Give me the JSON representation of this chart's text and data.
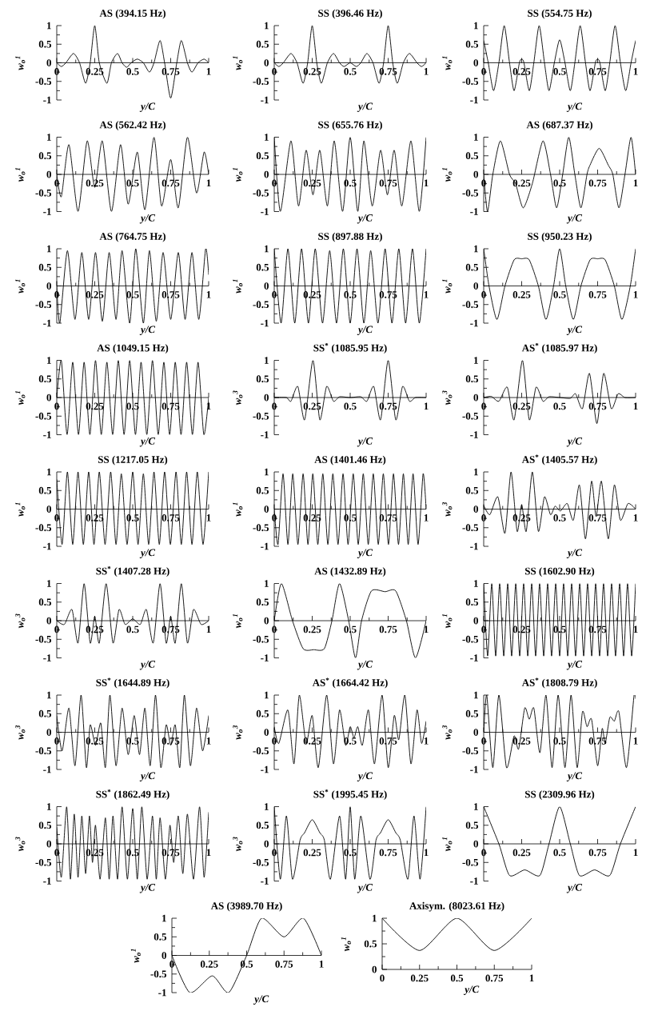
{
  "chart_data": [
    {
      "type": "line",
      "title": "AS (394.15 Hz)",
      "xlabel": "y/C",
      "ylabel": "w$_{o}$$^{1}$",
      "color": "#000000",
      "xlim": [
        0,
        1
      ],
      "ylim": [
        -1,
        1
      ],
      "xticks": [
        0,
        0.25,
        0.5,
        0.75,
        1
      ],
      "yticks": [
        -1,
        -0.5,
        0,
        0.5,
        1
      ],
      "x": [
        0,
        0.03,
        0.06,
        0.11,
        0.15,
        0.19,
        0.22,
        0.25,
        0.28,
        0.33,
        0.36,
        0.4,
        0.43,
        0.46,
        0.49,
        0.53,
        0.57,
        0.61,
        0.64,
        0.68,
        0.71,
        0.75,
        0.79,
        0.82,
        0.86,
        0.89,
        0.93,
        0.97,
        1
      ],
      "values": [
        0,
        -0.1,
        0,
        0.25,
        0,
        -0.55,
        0,
        1,
        0,
        -0.55,
        0,
        0.25,
        0,
        -0.12,
        0,
        0.1,
        0,
        -0.25,
        0,
        0.6,
        0,
        -0.95,
        0,
        0.6,
        0,
        -0.25,
        0,
        0.1,
        0
      ]
    },
    {
      "type": "line",
      "title": "SS (396.46 Hz)",
      "xlabel": "y/C",
      "ylabel": "w$_{o}$$^{1}$",
      "color": "#000000",
      "xlim": [
        0,
        1
      ],
      "ylim": [
        -1,
        1
      ],
      "xticks": [
        0,
        0.25,
        0.5,
        0.75,
        1
      ],
      "yticks": [
        -1,
        -0.5,
        0,
        0.5,
        1
      ],
      "x": [
        0,
        0.03,
        0.06,
        0.11,
        0.15,
        0.19,
        0.22,
        0.25,
        0.28,
        0.31,
        0.35,
        0.39,
        0.43,
        0.46,
        0.5,
        0.54,
        0.57,
        0.61,
        0.65,
        0.69,
        0.72,
        0.75,
        0.78,
        0.81,
        0.85,
        0.89,
        0.94,
        0.97,
        1
      ],
      "values": [
        0,
        -0.1,
        0,
        0.25,
        0,
        -0.55,
        0,
        1,
        0,
        -0.55,
        0,
        0.25,
        0,
        -0.1,
        0,
        -0.1,
        0,
        0.25,
        0,
        -0.55,
        0,
        1,
        0,
        -0.55,
        0,
        0.25,
        0,
        -0.1,
        0
      ]
    },
    {
      "type": "line",
      "title": "SS (554.75 Hz)",
      "xlabel": "y/C",
      "ylabel": "w$_{o}$$^{1}$",
      "color": "#000000",
      "xlim": [
        0,
        1
      ],
      "ylim": [
        -1,
        1
      ],
      "xticks": [
        0,
        0.25,
        0.5,
        0.75,
        1
      ],
      "yticks": [
        -1,
        -0.5,
        0,
        0.5,
        1
      ],
      "x": [
        0,
        0.03,
        0.065,
        0.1,
        0.135,
        0.17,
        0.2,
        0.235,
        0.25,
        0.265,
        0.3,
        0.33,
        0.365,
        0.4,
        0.43,
        0.465,
        0.5,
        0.535,
        0.57,
        0.6,
        0.635,
        0.67,
        0.7,
        0.735,
        0.75,
        0.765,
        0.8,
        0.83,
        0.865,
        0.9,
        0.935,
        0.97,
        1
      ],
      "values": [
        0.6,
        0,
        -0.75,
        0,
        1,
        0,
        -0.75,
        0,
        0.1,
        0,
        -0.75,
        0,
        1,
        0,
        -0.75,
        0,
        0.62,
        0,
        -0.75,
        0,
        1,
        0,
        -0.75,
        0,
        0.1,
        0,
        -0.75,
        0,
        1,
        0,
        -0.75,
        0,
        0.6
      ]
    },
    {
      "type": "line",
      "title": "AS (562.42 Hz)",
      "xlabel": "y/C",
      "ylabel": "w$_{o}$$^{1}$",
      "color": "#000000",
      "xlim": [
        0,
        1
      ],
      "ylim": [
        -1,
        1
      ],
      "xticks": [
        0,
        0.25,
        0.5,
        0.75,
        1
      ],
      "yticks": [
        -1,
        -0.5,
        0,
        0.5,
        1
      ],
      "x": [
        0,
        0.03,
        0.08,
        0.14,
        0.2,
        0.25,
        0.3,
        0.36,
        0.42,
        0.47,
        0.53,
        0.58,
        0.64,
        0.69,
        0.75,
        0.8,
        0.86,
        0.92,
        0.97,
        1
      ],
      "values": [
        0,
        -0.6,
        0.8,
        -1,
        0.9,
        -0.35,
        0.9,
        -1,
        0.8,
        -0.8,
        0.6,
        -0.95,
        1,
        -0.85,
        0.4,
        -0.9,
        1,
        -0.5,
        0.6,
        0
      ]
    },
    {
      "type": "line",
      "title": "SS (655.76 Hz)",
      "xlabel": "y/C",
      "ylabel": "w$_{o}$$^{1}$",
      "color": "#000000",
      "xlim": [
        0,
        1
      ],
      "ylim": [
        -1,
        1
      ],
      "xticks": [
        0,
        0.25,
        0.5,
        0.75,
        1
      ],
      "yticks": [
        -1,
        -0.5,
        0,
        0.5,
        1
      ],
      "x": [
        0,
        0.04,
        0.11,
        0.16,
        0.21,
        0.255,
        0.3,
        0.35,
        0.395,
        0.45,
        0.5,
        0.55,
        0.59,
        0.645,
        0.7,
        0.745,
        0.79,
        0.84,
        0.9,
        0.955,
        1
      ],
      "values": [
        1,
        -1,
        0.9,
        -0.85,
        0.65,
        -0.55,
        0.65,
        -0.85,
        0.9,
        -1,
        1,
        -1,
        0.9,
        -0.85,
        0.65,
        -0.55,
        0.65,
        -0.85,
        0.9,
        -1,
        1
      ]
    },
    {
      "type": "line",
      "title": "AS (687.37 Hz)",
      "xlabel": "y/C",
      "ylabel": "w$_{o}$$^{1}$",
      "color": "#000000",
      "xlim": [
        0,
        1
      ],
      "ylim": [
        -1,
        1
      ],
      "xticks": [
        0,
        0.25,
        0.5,
        0.75,
        1
      ],
      "yticks": [
        -1,
        -0.5,
        0,
        0.5,
        1
      ],
      "x": [
        0,
        0.025,
        0.06,
        0.11,
        0.17,
        0.21,
        0.26,
        0.32,
        0.39,
        0.44,
        0.48,
        0.52,
        0.56,
        0.6,
        0.64,
        0.68,
        0.7,
        0.76,
        0.82,
        0.85,
        0.89,
        0.93,
        0.97,
        1
      ],
      "values": [
        0,
        -1,
        0,
        0.9,
        0,
        -0.25,
        -0.9,
        -0.25,
        0.9,
        0,
        -0.9,
        0,
        1,
        0,
        -0.9,
        0,
        0.25,
        0.7,
        0.25,
        0,
        -0.9,
        0,
        1,
        0
      ]
    },
    {
      "type": "line",
      "title": "AS (764.75 Hz)",
      "xlabel": "y/C",
      "ylabel": "w$_{o}$$^{1}$",
      "color": "#000000",
      "xlim": [
        0,
        1
      ],
      "ylim": [
        -1,
        1
      ],
      "xticks": [
        0,
        0.25,
        0.5,
        0.75,
        1
      ],
      "yticks": [
        -1,
        -0.5,
        0,
        0.5,
        1
      ],
      "x": [
        0,
        0.02,
        0.07,
        0.12,
        0.165,
        0.21,
        0.255,
        0.3,
        0.345,
        0.39,
        0.43,
        0.48,
        0.52,
        0.57,
        0.61,
        0.655,
        0.7,
        0.75,
        0.8,
        0.845,
        0.89,
        0.935,
        0.98,
        1
      ],
      "values": [
        0,
        -1,
        0.95,
        -0.9,
        0.9,
        -0.9,
        0.9,
        -0.95,
        0.9,
        -0.9,
        0.95,
        -1,
        1,
        -1,
        0.95,
        -0.95,
        0.9,
        -0.9,
        0.9,
        -0.9,
        0.9,
        -0.9,
        1,
        0.3
      ]
    },
    {
      "type": "line",
      "title": "SS (897.88 Hz)",
      "xlabel": "y/C",
      "ylabel": "w$_{o}$$^{1}$",
      "color": "#000000",
      "xlim": [
        0,
        1
      ],
      "ylim": [
        -1,
        1
      ],
      "xticks": [
        0,
        0.25,
        0.5,
        0.75,
        1
      ],
      "yticks": [
        -1,
        -0.5,
        0,
        0.5,
        1
      ],
      "x": [
        0,
        0.045,
        0.09,
        0.135,
        0.18,
        0.225,
        0.27,
        0.318,
        0.365,
        0.41,
        0.455,
        0.5,
        0.545,
        0.59,
        0.635,
        0.683,
        0.73,
        0.775,
        0.82,
        0.865,
        0.91,
        0.955,
        1
      ],
      "values": [
        1,
        -1,
        1,
        -1,
        1,
        -1,
        1,
        -1,
        0.95,
        -1,
        1,
        -1,
        1,
        -1,
        0.95,
        -1,
        1,
        -1,
        1,
        -1,
        1,
        -1,
        1
      ]
    },
    {
      "type": "line",
      "title": "SS (950.23 Hz)",
      "xlabel": "y/C",
      "ylabel": "w$_{o}$$^{1}$",
      "color": "#000000",
      "xlim": [
        0,
        1
      ],
      "ylim": [
        -1,
        1
      ],
      "xticks": [
        0,
        0.25,
        0.5,
        0.75,
        1
      ],
      "yticks": [
        -1,
        -0.5,
        0,
        0.5,
        1
      ],
      "x": [
        0,
        0.035,
        0.087,
        0.14,
        0.2,
        0.25,
        0.3,
        0.36,
        0.41,
        0.46,
        0.5,
        0.54,
        0.59,
        0.64,
        0.7,
        0.75,
        0.8,
        0.86,
        0.91,
        0.965,
        1
      ],
      "values": [
        1,
        0,
        -0.9,
        0,
        0.7,
        0.73,
        0.7,
        0,
        -0.9,
        0,
        1,
        0,
        -0.9,
        0,
        0.7,
        0.73,
        0.7,
        0,
        -0.9,
        0,
        1
      ]
    },
    {
      "type": "line",
      "title": "AS (1049.15 Hz)",
      "xlabel": "y/C",
      "ylabel": "w$_{o}$$^{1}$",
      "color": "#000000",
      "xlim": [
        0,
        1
      ],
      "ylim": [
        -1,
        1
      ],
      "xticks": [
        0,
        0.25,
        0.5,
        0.75,
        1
      ],
      "yticks": [
        -1,
        -0.5,
        0,
        0.5,
        1
      ],
      "x": [
        0,
        0.03,
        0.068,
        0.105,
        0.143,
        0.18,
        0.218,
        0.255,
        0.293,
        0.33,
        0.368,
        0.405,
        0.443,
        0.48,
        0.518,
        0.555,
        0.593,
        0.63,
        0.668,
        0.705,
        0.743,
        0.78,
        0.818,
        0.855,
        0.893,
        0.93,
        0.968,
        1
      ],
      "values": [
        0,
        1,
        -1,
        0.95,
        -1,
        0.95,
        -1,
        1,
        -1,
        0.95,
        -1,
        1,
        -1,
        1,
        -1,
        0.95,
        -1,
        1,
        -1,
        0.95,
        -1,
        0.95,
        -1,
        0.95,
        -1,
        0.95,
        -1,
        0
      ]
    },
    {
      "type": "line",
      "title": "SS$^{*}$ (1085.95 Hz)",
      "xlabel": "y/C",
      "ylabel": "w$_{o}$$^{3}$",
      "color": "#000000",
      "xlim": [
        0,
        1
      ],
      "ylim": [
        -1,
        1
      ],
      "xticks": [
        0,
        0.25,
        0.5,
        0.75,
        1
      ],
      "yticks": [
        -1,
        -0.5,
        0,
        0.5,
        1
      ],
      "x": [
        0,
        0.08,
        0.11,
        0.155,
        0.2,
        0.255,
        0.3,
        0.345,
        0.39,
        0.43,
        0.5,
        0.57,
        0.61,
        0.655,
        0.7,
        0.75,
        0.8,
        0.845,
        0.89,
        0.93,
        1
      ],
      "values": [
        0,
        0,
        -0.1,
        0.3,
        -0.6,
        1,
        -0.6,
        0.3,
        -0.1,
        0.02,
        0,
        0.02,
        -0.1,
        0.3,
        -0.6,
        1,
        -0.6,
        0.3,
        -0.1,
        0,
        0
      ]
    },
    {
      "type": "line",
      "title": "AS$^{*}$ (1085.97 Hz)",
      "xlabel": "y/C",
      "ylabel": "w$_{o}$$^{3}$",
      "color": "#000000",
      "xlim": [
        0,
        1
      ],
      "ylim": [
        -1,
        1
      ],
      "xticks": [
        0,
        0.25,
        0.5,
        0.75,
        1
      ],
      "yticks": [
        -1,
        -0.5,
        0,
        0.5,
        1
      ],
      "x": [
        0,
        0.05,
        0.1,
        0.155,
        0.2,
        0.255,
        0.3,
        0.345,
        0.39,
        0.43,
        0.5,
        0.57,
        0.605,
        0.65,
        0.696,
        0.745,
        0.79,
        0.84,
        0.885,
        0.93,
        1
      ],
      "values": [
        0,
        0.03,
        -0.1,
        0.28,
        -0.6,
        1,
        -0.6,
        0.28,
        -0.1,
        0.02,
        0,
        -0.02,
        0.1,
        -0.3,
        0.65,
        -0.7,
        0.65,
        -0.3,
        0.1,
        0,
        0
      ]
    },
    {
      "type": "line",
      "title": "SS (1217.05 Hz)",
      "xlabel": "y/C",
      "ylabel": "w$_{o}$$^{1}$",
      "color": "#000000",
      "xlim": [
        0,
        1
      ],
      "ylim": [
        -1,
        1
      ],
      "xticks": [
        0,
        0.25,
        0.5,
        0.75,
        1
      ],
      "yticks": [
        -1,
        -0.5,
        0,
        0.5,
        1
      ],
      "x": [
        0,
        0.035,
        0.07,
        0.105,
        0.14,
        0.175,
        0.21,
        0.245,
        0.28,
        0.318,
        0.355,
        0.39,
        0.425,
        0.463,
        0.5,
        0.535,
        0.57,
        0.605,
        0.64,
        0.675,
        0.71,
        0.748,
        0.785,
        0.82,
        0.855,
        0.89,
        0.925,
        0.963,
        1
      ],
      "values": [
        0.8,
        -0.95,
        1,
        -0.95,
        1,
        -0.95,
        1,
        -0.95,
        1,
        -0.95,
        1,
        -0.95,
        0.95,
        -0.95,
        1,
        -0.95,
        0.95,
        -0.95,
        1,
        -0.95,
        1,
        -0.95,
        1,
        -0.95,
        1,
        -0.95,
        1,
        -0.95,
        1
      ]
    },
    {
      "type": "line",
      "title": "AS (1401.46 Hz)",
      "xlabel": "y/C",
      "ylabel": "w$_{o}$$^{1}$",
      "color": "#000000",
      "xlim": [
        0,
        1
      ],
      "ylim": [
        -1,
        1
      ],
      "xticks": [
        0,
        0.25,
        0.5,
        0.75,
        1
      ],
      "yticks": [
        -1,
        -0.5,
        0,
        0.5,
        1
      ],
      "x": [
        0,
        0.025,
        0.058,
        0.09,
        0.122,
        0.156,
        0.19,
        0.222,
        0.254,
        0.287,
        0.32,
        0.353,
        0.386,
        0.42,
        0.453,
        0.486,
        0.52,
        0.553,
        0.586,
        0.619,
        0.652,
        0.685,
        0.718,
        0.752,
        0.785,
        0.818,
        0.85,
        0.882,
        0.914,
        0.947,
        0.98,
        1
      ],
      "values": [
        0,
        -0.95,
        0.95,
        -0.95,
        0.95,
        -0.95,
        0.95,
        -0.95,
        0.95,
        -0.95,
        0.95,
        -0.95,
        0.95,
        -0.95,
        0.95,
        -0.95,
        0.95,
        -0.95,
        0.95,
        -0.95,
        0.95,
        -0.95,
        0.95,
        -0.95,
        0.95,
        -0.95,
        0.95,
        -0.95,
        0.95,
        -0.95,
        0.95,
        0
      ]
    },
    {
      "type": "line",
      "title": "AS$^{*}$ (1405.57 Hz)",
      "xlabel": "y/C",
      "ylabel": "w$_{o}$$^{3}$",
      "color": "#000000",
      "xlim": [
        0,
        1
      ],
      "ylim": [
        -1,
        1
      ],
      "xticks": [
        0,
        0.25,
        0.5,
        0.75,
        1
      ],
      "yticks": [
        -1,
        -0.5,
        0,
        0.5,
        1
      ],
      "x": [
        0,
        0.04,
        0.093,
        0.14,
        0.18,
        0.22,
        0.25,
        0.28,
        0.32,
        0.36,
        0.4,
        0.44,
        0.47,
        0.505,
        0.55,
        0.59,
        0.63,
        0.67,
        0.71,
        0.74,
        0.775,
        0.82,
        0.86,
        0.9,
        0.95,
        1
      ],
      "values": [
        0.1,
        -0.15,
        0.33,
        -0.65,
        1,
        -0.6,
        0.12,
        -0.6,
        1,
        -0.6,
        0.33,
        -0.15,
        0.08,
        -0.05,
        0.15,
        -0.3,
        0.65,
        -0.8,
        0.75,
        -0.2,
        0.75,
        -0.8,
        0.65,
        -0.3,
        0.15,
        0
      ]
    },
    {
      "type": "line",
      "title": "SS$^{*}$ (1407.28 Hz)",
      "xlabel": "y/C",
      "ylabel": "w$_{o}$$^{3}$",
      "color": "#000000",
      "xlim": [
        0,
        1
      ],
      "ylim": [
        -1,
        1
      ],
      "xticks": [
        0,
        0.25,
        0.5,
        0.75,
        1
      ],
      "yticks": [
        -1,
        -0.5,
        0,
        0.5,
        1
      ],
      "x": [
        0,
        0.05,
        0.1,
        0.14,
        0.18,
        0.22,
        0.25,
        0.28,
        0.325,
        0.37,
        0.41,
        0.45,
        0.5,
        0.55,
        0.59,
        0.635,
        0.68,
        0.72,
        0.75,
        0.78,
        0.82,
        0.86,
        0.9,
        0.95,
        1
      ],
      "values": [
        0,
        -0.1,
        0.3,
        -0.6,
        1,
        -0.6,
        0.12,
        -0.6,
        1,
        -0.6,
        0.3,
        -0.1,
        0.05,
        -0.1,
        0.3,
        -0.6,
        1,
        -0.6,
        0.12,
        -0.6,
        1,
        -0.6,
        0.3,
        -0.1,
        0
      ]
    },
    {
      "type": "line",
      "title": "AS (1432.89 Hz)",
      "xlabel": "y/C",
      "ylabel": "w$_{o}$$^{1}$",
      "color": "#000000",
      "xlim": [
        0,
        1
      ],
      "ylim": [
        -1,
        1
      ],
      "xticks": [
        0,
        0.25,
        0.5,
        0.75,
        1
      ],
      "yticks": [
        -1,
        -0.5,
        0,
        0.5,
        1
      ],
      "x": [
        0,
        0.047,
        0.12,
        0.19,
        0.26,
        0.33,
        0.38,
        0.43,
        0.49,
        0.535,
        0.575,
        0.64,
        0.73,
        0.8,
        0.87,
        0.93,
        1
      ],
      "values": [
        0,
        1,
        0,
        -0.75,
        -0.78,
        -0.75,
        0,
        1,
        0,
        -1,
        0,
        0.8,
        0.78,
        0.8,
        0,
        -1,
        0
      ]
    },
    {
      "type": "line",
      "title": "SS (1602.90 Hz)",
      "xlabel": "y/C",
      "ylabel": "w$_{o}$$^{1}$",
      "color": "#000000",
      "xlim": [
        0,
        1
      ],
      "ylim": [
        -1,
        1
      ],
      "xticks": [
        0,
        0.25,
        0.5,
        0.75,
        1
      ],
      "yticks": [
        -1,
        -0.5,
        0,
        0.5,
        1
      ],
      "x": [
        0,
        0.026,
        0.053,
        0.079,
        0.105,
        0.132,
        0.158,
        0.184,
        0.211,
        0.237,
        0.263,
        0.29,
        0.316,
        0.342,
        0.368,
        0.395,
        0.421,
        0.447,
        0.474,
        0.5,
        0.526,
        0.553,
        0.579,
        0.605,
        0.632,
        0.658,
        0.684,
        0.711,
        0.737,
        0.763,
        0.789,
        0.816,
        0.842,
        0.868,
        0.895,
        0.921,
        0.947,
        0.974,
        1
      ],
      "values": [
        1,
        -0.95,
        1,
        -0.95,
        1,
        -0.95,
        1,
        -0.95,
        1,
        -0.95,
        1,
        -0.95,
        1,
        -0.95,
        1,
        -0.95,
        1,
        -0.95,
        1,
        -0.95,
        1,
        -0.95,
        1,
        -0.95,
        1,
        -0.95,
        1,
        -0.95,
        1,
        -0.95,
        1,
        -0.95,
        1,
        -0.95,
        1,
        -0.95,
        1,
        -0.95,
        1
      ]
    },
    {
      "type": "line",
      "title": "SS$^{*}$ (1644.89 Hz)",
      "xlabel": "y/C",
      "ylabel": "w$_{o}$$^{3}$",
      "color": "#000000",
      "xlim": [
        0,
        1
      ],
      "ylim": [
        -1,
        1
      ],
      "xticks": [
        0,
        0.25,
        0.5,
        0.75,
        1
      ],
      "yticks": [
        -1,
        -0.5,
        0,
        0.5,
        1
      ],
      "x": [
        0,
        0.035,
        0.08,
        0.12,
        0.16,
        0.195,
        0.22,
        0.255,
        0.29,
        0.32,
        0.35,
        0.39,
        0.43,
        0.47,
        0.51,
        0.545,
        0.58,
        0.615,
        0.65,
        0.685,
        0.72,
        0.75,
        0.78,
        0.81,
        0.84,
        0.88,
        0.92,
        0.96,
        1
      ],
      "values": [
        0.45,
        -0.5,
        0.65,
        -0.9,
        1,
        -0.95,
        0.2,
        -0.35,
        0.25,
        -0.95,
        1,
        -0.9,
        0.65,
        -0.6,
        0.45,
        -0.6,
        0.65,
        -0.9,
        1,
        -0.95,
        0.2,
        -0.35,
        0.2,
        -0.95,
        1,
        -0.9,
        0.65,
        -0.5,
        0.45
      ]
    },
    {
      "type": "line",
      "title": "AS$^{*}$ (1664.42 Hz)",
      "xlabel": "y/C",
      "ylabel": "w$_{o}$$^{3}$",
      "color": "#000000",
      "xlim": [
        0,
        1
      ],
      "ylim": [
        -1,
        1
      ],
      "xticks": [
        0,
        0.25,
        0.5,
        0.75,
        1
      ],
      "yticks": [
        -1,
        -0.5,
        0,
        0.5,
        1
      ],
      "x": [
        0,
        0.03,
        0.09,
        0.13,
        0.165,
        0.21,
        0.25,
        0.29,
        0.345,
        0.39,
        0.43,
        0.47,
        0.5,
        0.525,
        0.55,
        0.58,
        0.62,
        0.66,
        0.71,
        0.75,
        0.79,
        0.82,
        0.86,
        0.9,
        0.94,
        0.97,
        1
      ],
      "values": [
        0.15,
        -0.3,
        0.6,
        -0.85,
        1,
        -0.3,
        0.45,
        -0.95,
        1,
        -0.85,
        0.6,
        -0.35,
        0.15,
        -0.15,
        0.15,
        -0.35,
        0.6,
        -0.85,
        1,
        -0.95,
        0.45,
        -0.2,
        1,
        -0.85,
        0.6,
        -0.3,
        0.3
      ]
    },
    {
      "type": "line",
      "title": "AS$^{*}$ (1808.79 Hz)",
      "xlabel": "y/C",
      "ylabel": "w$_{o}$$^{3}$",
      "color": "#000000",
      "xlim": [
        0,
        1
      ],
      "ylim": [
        -1,
        1
      ],
      "xticks": [
        0,
        0.25,
        0.5,
        0.75,
        1
      ],
      "yticks": [
        -1,
        -0.5,
        0,
        0.5,
        1
      ],
      "x": [
        0,
        0.02,
        0.06,
        0.1,
        0.15,
        0.2,
        0.23,
        0.27,
        0.3,
        0.33,
        0.37,
        0.41,
        0.45,
        0.49,
        0.535,
        0.575,
        0.615,
        0.65,
        0.68,
        0.71,
        0.75,
        0.78,
        0.8,
        0.83,
        0.86,
        0.89,
        0.94,
        0.99,
        1
      ],
      "values": [
        0,
        1,
        -0.95,
        1,
        -0.95,
        -0.1,
        -0.45,
        0.65,
        0.35,
        0.65,
        -0.55,
        1,
        -0.95,
        1,
        -0.95,
        1,
        -0.95,
        0.55,
        0.15,
        0.35,
        -0.9,
        0.1,
        -0.3,
        0.4,
        0.3,
        0.55,
        -0.95,
        1,
        0.9
      ]
    },
    {
      "type": "line",
      "title": "SS$^{*}$ (1862.49 Hz)",
      "xlabel": "y/C",
      "ylabel": "w$_{o}$$^{3}$",
      "color": "#000000",
      "xlim": [
        0,
        1
      ],
      "ylim": [
        -1,
        1
      ],
      "xticks": [
        0,
        0.25,
        0.5,
        0.75,
        1
      ],
      "yticks": [
        -1,
        -0.5,
        0,
        0.5,
        1
      ],
      "x": [
        0,
        0.03,
        0.065,
        0.09,
        0.115,
        0.14,
        0.165,
        0.19,
        0.215,
        0.235,
        0.255,
        0.285,
        0.32,
        0.345,
        0.37,
        0.4,
        0.43,
        0.465,
        0.5,
        0.53,
        0.56,
        0.595,
        0.63,
        0.655,
        0.68,
        0.715,
        0.745,
        0.77,
        0.8,
        0.83,
        0.86,
        0.9,
        0.94,
        0.97,
        1
      ],
      "values": [
        0.45,
        -0.9,
        1,
        -0.95,
        0.8,
        -0.9,
        0.75,
        -0.8,
        0.75,
        -0.5,
        0.5,
        -0.95,
        0.7,
        -0.95,
        0.75,
        -0.95,
        1,
        -0.95,
        0.95,
        -0.95,
        1,
        -0.95,
        0.75,
        -0.95,
        0.7,
        -0.95,
        0.5,
        -0.5,
        0.75,
        -0.8,
        0.8,
        -0.95,
        1,
        -0.9,
        0.85
      ]
    },
    {
      "type": "line",
      "title": "SS$^{*}$ (1995.45 Hz)",
      "xlabel": "y/C",
      "ylabel": "w$_{o}$$^{3}$",
      "color": "#000000",
      "xlim": [
        0,
        1
      ],
      "ylim": [
        -1,
        1
      ],
      "xticks": [
        0,
        0.25,
        0.5,
        0.75,
        1
      ],
      "yticks": [
        -1,
        -0.5,
        0,
        0.5,
        1
      ],
      "x": [
        0,
        0.04,
        0.08,
        0.12,
        0.17,
        0.2,
        0.25,
        0.3,
        0.33,
        0.37,
        0.43,
        0.47,
        0.5,
        0.53,
        0.57,
        0.63,
        0.67,
        0.7,
        0.75,
        0.8,
        0.83,
        0.88,
        0.92,
        0.96,
        1
      ],
      "values": [
        1,
        -0.95,
        0.75,
        -0.95,
        0.1,
        0.3,
        0.65,
        0.3,
        0.1,
        -0.95,
        0.75,
        -0.95,
        1,
        -0.95,
        0.75,
        -0.95,
        0.1,
        0.3,
        0.65,
        0.3,
        0.1,
        -0.95,
        0.75,
        -0.95,
        1
      ]
    },
    {
      "type": "line",
      "title": "SS (2309.96 Hz)",
      "xlabel": "y/C",
      "ylabel": "w$_{o}$$^{1}$",
      "color": "#000000",
      "xlim": [
        0,
        1
      ],
      "ylim": [
        -1,
        1
      ],
      "xticks": [
        0,
        0.25,
        0.5,
        0.75,
        1
      ],
      "yticks": [
        -1,
        -0.5,
        0,
        0.5,
        1
      ],
      "x": [
        0,
        0.1,
        0.17,
        0.27,
        0.37,
        0.43,
        0.5,
        0.57,
        0.63,
        0.73,
        0.83,
        0.9,
        1
      ],
      "values": [
        1,
        0,
        -0.85,
        -0.7,
        -0.85,
        0,
        1,
        0,
        -0.85,
        -0.7,
        -0.85,
        0,
        1
      ]
    },
    {
      "type": "line",
      "title": "AS (3989.70 Hz)",
      "xlabel": "y/C",
      "ylabel": "w$_{o}$$^{1}$",
      "color": "#000000",
      "xlim": [
        0,
        1
      ],
      "ylim": [
        -1,
        1
      ],
      "xticks": [
        0,
        0.25,
        0.5,
        0.75,
        1
      ],
      "yticks": [
        -1,
        -0.5,
        0,
        0.5,
        1
      ],
      "x": [
        0,
        0.12,
        0.27,
        0.38,
        0.5,
        0.6,
        0.75,
        0.88,
        1
      ],
      "values": [
        0,
        -1,
        -0.55,
        -1,
        0,
        1,
        0.5,
        1,
        0
      ]
    },
    {
      "type": "line",
      "title": "Axisym. (8023.61 Hz)",
      "xlabel": "y/C",
      "ylabel": "w$_{o}$$^{1}$",
      "color": "#000000",
      "xlim": [
        0,
        1
      ],
      "ylim": [
        0,
        1
      ],
      "xticks": [
        0,
        0.25,
        0.5,
        0.75,
        1
      ],
      "yticks": [
        0,
        0.5,
        1
      ],
      "x": [
        0,
        0.25,
        0.5,
        0.75,
        1
      ],
      "values": [
        1,
        0.37,
        1,
        0.37,
        1
      ]
    }
  ]
}
